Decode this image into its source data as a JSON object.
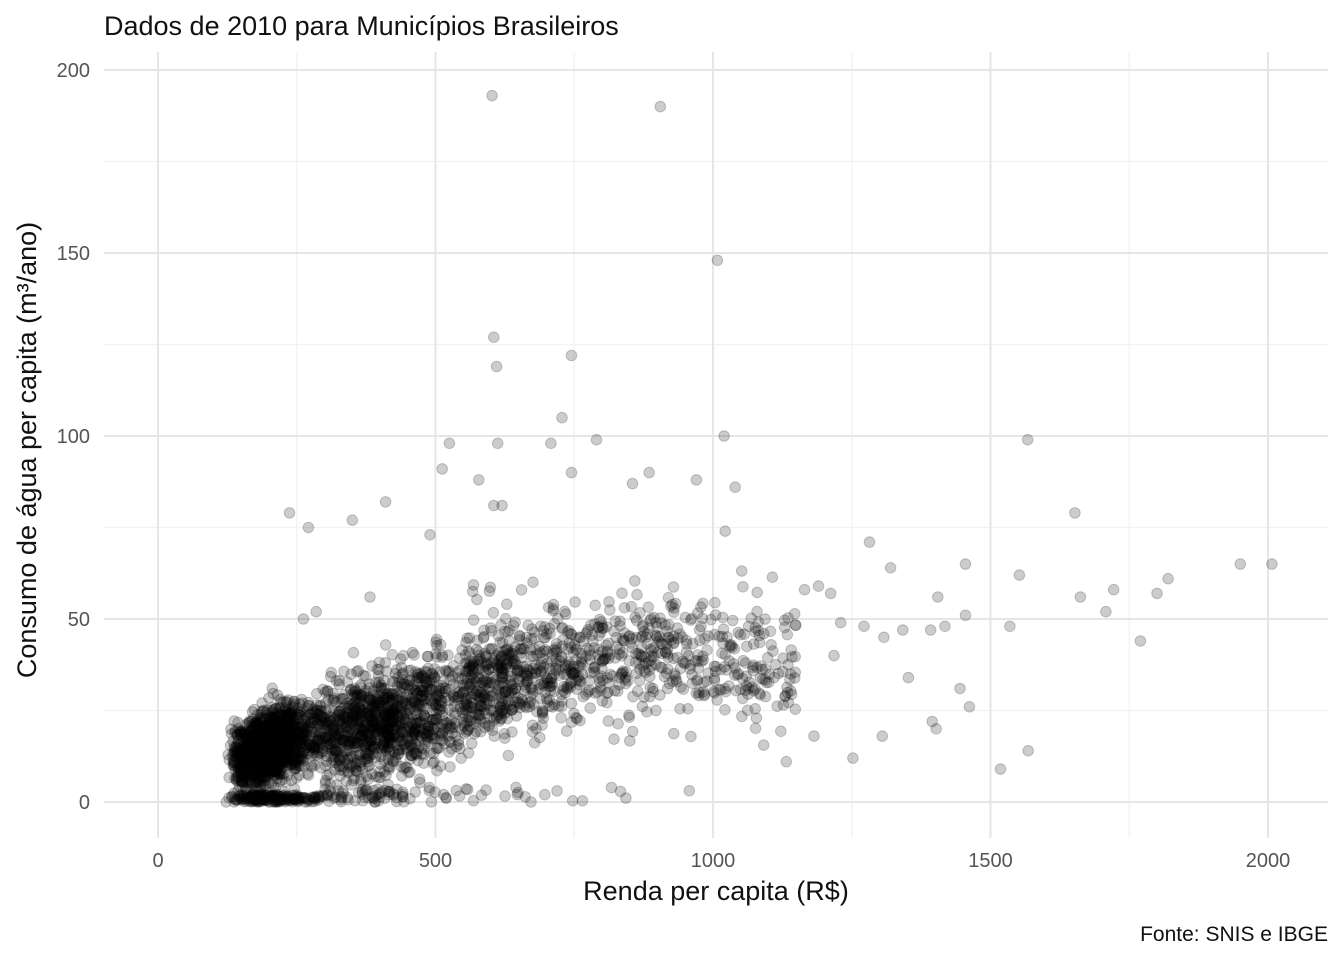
{
  "chart_data": {
    "type": "scatter",
    "title": "Dados de 2010 para Municípios Brasileiros",
    "xlabel": "Renda per capita (R$)",
    "ylabel": "Consumo de água per capita (m³/ano)",
    "caption": "Fonte: SNIS e IBGE",
    "xlim": [
      -100,
      2100
    ],
    "ylim": [
      -10,
      203
    ],
    "xticks": [
      0,
      500,
      1000,
      1500,
      2000
    ],
    "xtick_labels": [
      "0",
      "500",
      "1000",
      "1500",
      "2000"
    ],
    "yticks": [
      0,
      50,
      100,
      150,
      200
    ],
    "ytick_labels": [
      "0",
      "50",
      "100",
      "150",
      "200"
    ],
    "grid": true,
    "point_color": "#000000",
    "point_alpha": 0.2,
    "notable_points": [
      {
        "x": 602,
        "y": 193
      },
      {
        "x": 905,
        "y": 190
      },
      {
        "x": 1008,
        "y": 148
      },
      {
        "x": 605,
        "y": 127
      },
      {
        "x": 610,
        "y": 119
      },
      {
        "x": 745,
        "y": 122
      },
      {
        "x": 728,
        "y": 105
      },
      {
        "x": 1020,
        "y": 100
      },
      {
        "x": 1567,
        "y": 99
      },
      {
        "x": 790,
        "y": 99
      },
      {
        "x": 525,
        "y": 98
      },
      {
        "x": 612,
        "y": 98
      },
      {
        "x": 708,
        "y": 98
      },
      {
        "x": 512,
        "y": 91
      },
      {
        "x": 885,
        "y": 90
      },
      {
        "x": 745,
        "y": 90
      },
      {
        "x": 578,
        "y": 88
      },
      {
        "x": 970,
        "y": 88
      },
      {
        "x": 1040,
        "y": 86
      },
      {
        "x": 855,
        "y": 87
      },
      {
        "x": 410,
        "y": 82
      },
      {
        "x": 605,
        "y": 81
      },
      {
        "x": 620,
        "y": 81
      },
      {
        "x": 237,
        "y": 79
      },
      {
        "x": 271,
        "y": 75
      },
      {
        "x": 350,
        "y": 77
      },
      {
        "x": 490,
        "y": 73
      },
      {
        "x": 1022,
        "y": 74
      },
      {
        "x": 1652,
        "y": 79
      },
      {
        "x": 1282,
        "y": 71
      },
      {
        "x": 1320,
        "y": 64
      },
      {
        "x": 1455,
        "y": 65
      },
      {
        "x": 1552,
        "y": 62
      },
      {
        "x": 1950,
        "y": 65
      },
      {
        "x": 2007,
        "y": 65
      },
      {
        "x": 1820,
        "y": 61
      },
      {
        "x": 1800,
        "y": 57
      },
      {
        "x": 1722,
        "y": 58
      },
      {
        "x": 1662,
        "y": 56
      },
      {
        "x": 1708,
        "y": 52
      },
      {
        "x": 1405,
        "y": 56
      },
      {
        "x": 1455,
        "y": 51
      },
      {
        "x": 1535,
        "y": 48
      },
      {
        "x": 1418,
        "y": 48
      },
      {
        "x": 1392,
        "y": 47
      },
      {
        "x": 1342,
        "y": 47
      },
      {
        "x": 1308,
        "y": 45
      },
      {
        "x": 1272,
        "y": 48
      },
      {
        "x": 1770,
        "y": 44
      },
      {
        "x": 1352,
        "y": 34
      },
      {
        "x": 1445,
        "y": 31
      },
      {
        "x": 1462,
        "y": 26
      },
      {
        "x": 1395,
        "y": 22
      },
      {
        "x": 1402,
        "y": 20
      },
      {
        "x": 1305,
        "y": 18
      },
      {
        "x": 1252,
        "y": 12
      },
      {
        "x": 1568,
        "y": 14
      },
      {
        "x": 1518,
        "y": 9
      },
      {
        "x": 1182,
        "y": 18
      },
      {
        "x": 1132,
        "y": 11
      },
      {
        "x": 1230,
        "y": 49
      },
      {
        "x": 1218,
        "y": 40
      },
      {
        "x": 1190,
        "y": 59
      },
      {
        "x": 1212,
        "y": 57
      },
      {
        "x": 1165,
        "y": 58
      },
      {
        "x": 285,
        "y": 52
      },
      {
        "x": 262,
        "y": 50
      },
      {
        "x": 382,
        "y": 56
      },
      {
        "x": 123,
        "y": 0
      },
      {
        "x": 672,
        "y": 0
      },
      {
        "x": 645,
        "y": 4
      }
    ]
  }
}
